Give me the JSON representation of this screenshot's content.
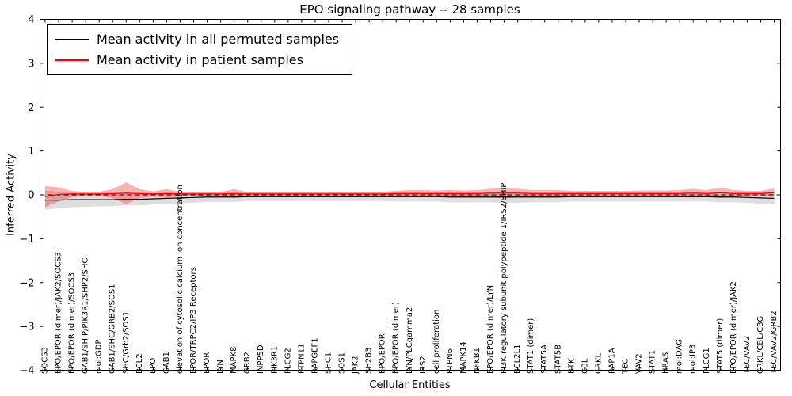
{
  "chart_data": {
    "type": "line",
    "title": "EPO signaling pathway -- 28 samples",
    "xlabel": "Cellular Entities",
    "ylabel": "Inferred Activity",
    "ylim": [
      -4,
      4
    ],
    "yticks": [
      -4,
      -3,
      -2,
      -1,
      0,
      1,
      2,
      3,
      4
    ],
    "grid": false,
    "legend_position": "upper left",
    "reference_line_y": 0,
    "categories": [
      "SOCS3",
      "EPO/EPOR (dimer)/JAK2/SOCS3",
      "EPO/EPOR (dimer)/SOCS3",
      "GAB1/SHIP/PIK3R1/SHP2/SHC",
      "mol:GDP",
      "GAB1/SHC/GRB2/SOS1",
      "SHC/Grb2/SOS1",
      "BCL2",
      "EPO",
      "GAB1",
      "elevation of cytosolic calcium ion concentration",
      "EPOR/TRPC2/IP3 Receptors",
      "EPOR",
      "LYN",
      "MAPK8",
      "GRB2",
      "INPP5D",
      "PIK3R1",
      "PLCG2",
      "PTPN11",
      "RAPGEF1",
      "SHC1",
      "SOS1",
      "JAK2",
      "SH2B3",
      "EPO/EPOR",
      "EPO/EPOR (dimer)",
      "LYN/PLCgamma2",
      "IRS2",
      "cell proliferation",
      "PTPN6",
      "MAPK14",
      "NFKB1",
      "EPO/EPOR (dimer)/LYN",
      "PI3K regulatory subunit polypeptide 1/IRS2/SHIP",
      "BCL2L1",
      "STAT1 (dimer)",
      "STAT5A",
      "STAT5B",
      "BTK",
      "CBL",
      "CRKL",
      "RAP1A",
      "TEC",
      "VAV2",
      "STAT1",
      "HRAS",
      "mol:DAG",
      "mol:IP3",
      "PLCG1",
      "STAT5 (dimer)",
      "EPO/EPOR (dimer)/JAK2",
      "TEC/VAV2",
      "CRKL/CBL/C3G",
      "TEC/VAV2/GRB2"
    ],
    "series": [
      {
        "name": "Mean activity in all permuted samples",
        "color": "#000000",
        "band_color": "rgba(0,0,0,0.13)",
        "values": [
          -0.12,
          -0.12,
          -0.11,
          -0.11,
          -0.11,
          -0.11,
          -0.1,
          -0.1,
          -0.09,
          -0.08,
          -0.07,
          -0.06,
          -0.05,
          -0.05,
          -0.05,
          -0.04,
          -0.04,
          -0.04,
          -0.04,
          -0.04,
          -0.04,
          -0.04,
          -0.04,
          -0.04,
          -0.04,
          -0.04,
          -0.04,
          -0.04,
          -0.04,
          -0.04,
          -0.05,
          -0.05,
          -0.05,
          -0.05,
          -0.05,
          -0.05,
          -0.05,
          -0.05,
          -0.05,
          -0.04,
          -0.04,
          -0.04,
          -0.04,
          -0.04,
          -0.04,
          -0.04,
          -0.04,
          -0.04,
          -0.04,
          -0.04,
          -0.05,
          -0.05,
          -0.06,
          -0.07,
          -0.08
        ],
        "band_halfwidth": [
          0.22,
          0.19,
          0.17,
          0.16,
          0.15,
          0.15,
          0.14,
          0.14,
          0.13,
          0.13,
          0.12,
          0.12,
          0.11,
          0.11,
          0.11,
          0.1,
          0.1,
          0.1,
          0.1,
          0.1,
          0.1,
          0.1,
          0.1,
          0.1,
          0.1,
          0.1,
          0.11,
          0.11,
          0.11,
          0.11,
          0.12,
          0.12,
          0.12,
          0.12,
          0.13,
          0.13,
          0.12,
          0.12,
          0.12,
          0.11,
          0.11,
          0.11,
          0.11,
          0.11,
          0.11,
          0.11,
          0.11,
          0.11,
          0.11,
          0.11,
          0.12,
          0.12,
          0.12,
          0.13,
          0.14
        ]
      },
      {
        "name": "Mean activity in patient samples",
        "color": "#ff0000",
        "band_color": "rgba(255,0,0,0.30)",
        "values": [
          -0.04,
          0.01,
          0.02,
          0.02,
          0.02,
          0.03,
          0.04,
          0.03,
          0.02,
          0.03,
          0.02,
          0.02,
          0.02,
          0.02,
          0.03,
          0.02,
          0.02,
          0.02,
          0.02,
          0.02,
          0.02,
          0.02,
          0.02,
          0.02,
          0.02,
          0.02,
          0.03,
          0.03,
          0.03,
          0.03,
          0.03,
          0.03,
          0.03,
          0.04,
          0.04,
          0.04,
          0.03,
          0.03,
          0.03,
          0.03,
          0.03,
          0.03,
          0.03,
          0.03,
          0.03,
          0.03,
          0.03,
          0.03,
          0.04,
          0.03,
          0.05,
          0.03,
          0.03,
          0.03,
          0.05
        ],
        "band_halfwidth": [
          0.24,
          0.16,
          0.07,
          0.05,
          0.05,
          0.1,
          0.25,
          0.1,
          0.06,
          0.1,
          0.05,
          0.04,
          0.04,
          0.05,
          0.1,
          0.04,
          0.04,
          0.04,
          0.04,
          0.04,
          0.04,
          0.04,
          0.04,
          0.04,
          0.04,
          0.05,
          0.06,
          0.08,
          0.08,
          0.07,
          0.08,
          0.07,
          0.08,
          0.1,
          0.12,
          0.1,
          0.08,
          0.08,
          0.08,
          0.06,
          0.06,
          0.06,
          0.06,
          0.06,
          0.07,
          0.07,
          0.07,
          0.08,
          0.1,
          0.08,
          0.12,
          0.08,
          0.06,
          0.06,
          0.1
        ]
      }
    ]
  }
}
